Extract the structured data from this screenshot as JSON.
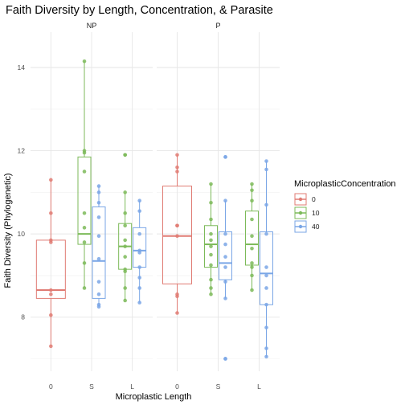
{
  "chart_data": {
    "type": "boxplot",
    "title": "Faith Diversity by Length, Concentration, & Parasite",
    "xlabel": "Microplastic Length",
    "ylabel": "Faith Diversity (Phylogenetic)",
    "ylim": [
      6.7,
      14.85
    ],
    "yticks": [
      8,
      10,
      12,
      14
    ],
    "categories": [
      "0",
      "S",
      "L"
    ],
    "facets": [
      "NP",
      "P"
    ],
    "legend": {
      "title": "MicroplasticConcentration",
      "position": "right",
      "entries": [
        {
          "label": "0",
          "color": "#e07b73"
        },
        {
          "label": "10",
          "color": "#7cba59"
        },
        {
          "label": "40",
          "color": "#7aa6e6"
        }
      ]
    },
    "grid": true,
    "groups": [
      {
        "facet": "NP",
        "category": "0",
        "series": "0",
        "box": {
          "lower_whisker": 7.3,
          "q1": 8.45,
          "median": 8.65,
          "q3": 9.85,
          "upper_whisker": 11.3
        },
        "points": [
          11.3,
          10.5,
          9.85,
          9.8,
          8.65,
          8.55,
          8.05,
          7.3
        ]
      },
      {
        "facet": "NP",
        "category": "S",
        "series": "10",
        "box": {
          "lower_whisker": 8.7,
          "q1": 9.75,
          "median": 10.0,
          "q3": 11.85,
          "upper_whisker": 14.15
        },
        "points": [
          14.15,
          12.0,
          11.95,
          11.5,
          10.5,
          10.15,
          9.8,
          9.3,
          8.7
        ]
      },
      {
        "facet": "NP",
        "category": "S",
        "series": "40",
        "box": {
          "lower_whisker": 8.25,
          "q1": 8.45,
          "median": 9.35,
          "q3": 10.65,
          "upper_whisker": 11.15
        },
        "points": [
          11.15,
          11.0,
          10.75,
          10.4,
          9.95,
          9.4,
          8.85,
          8.55,
          8.3,
          8.25
        ]
      },
      {
        "facet": "NP",
        "category": "L",
        "series": "10",
        "box": {
          "lower_whisker": 8.4,
          "q1": 9.15,
          "median": 9.7,
          "q3": 10.25,
          "upper_whisker": 11.0
        },
        "points": [
          11.9,
          11.9,
          11.0,
          10.5,
          10.2,
          9.85,
          9.7,
          9.45,
          9.15,
          9.1,
          8.7,
          8.4
        ]
      },
      {
        "facet": "NP",
        "category": "L",
        "series": "40",
        "box": {
          "lower_whisker": 8.35,
          "q1": 9.2,
          "median": 9.6,
          "q3": 10.15,
          "upper_whisker": 10.8
        },
        "points": [
          10.8,
          10.55,
          10.0,
          9.6,
          9.55,
          9.2,
          8.95,
          8.7,
          8.35
        ]
      },
      {
        "facet": "P",
        "category": "0",
        "series": "0",
        "box": {
          "lower_whisker": 8.1,
          "q1": 8.8,
          "median": 9.95,
          "q3": 11.15,
          "upper_whisker": 11.9
        },
        "points": [
          11.9,
          11.6,
          11.5,
          10.2,
          10.2,
          9.95,
          8.55,
          8.5,
          8.1
        ]
      },
      {
        "facet": "P",
        "category": "S",
        "series": "10",
        "box": {
          "lower_whisker": 8.55,
          "q1": 9.2,
          "median": 9.75,
          "q3": 10.2,
          "upper_whisker": 11.2
        },
        "points": [
          11.2,
          10.75,
          10.35,
          10.0,
          9.85,
          9.7,
          9.5,
          9.25,
          8.9,
          8.7,
          8.55
        ]
      },
      {
        "facet": "P",
        "category": "S",
        "series": "40",
        "box": {
          "lower_whisker": 8.45,
          "q1": 8.9,
          "median": 9.3,
          "q3": 10.05,
          "upper_whisker": 10.8
        },
        "points": [
          11.85,
          11.85,
          10.8,
          10.0,
          9.75,
          9.45,
          9.2,
          8.85,
          8.45,
          7.0,
          7.0
        ]
      },
      {
        "facet": "P",
        "category": "L",
        "series": "10",
        "box": {
          "lower_whisker": 8.65,
          "q1": 9.25,
          "median": 9.75,
          "q3": 10.55,
          "upper_whisker": 11.2
        },
        "points": [
          11.2,
          11.05,
          10.8,
          10.35,
          9.95,
          9.65,
          9.3,
          9.2,
          9.0,
          8.65
        ]
      },
      {
        "facet": "P",
        "category": "L",
        "series": "40",
        "box": {
          "lower_whisker": 7.05,
          "q1": 8.3,
          "median": 9.05,
          "q3": 10.05,
          "upper_whisker": 11.75
        },
        "points": [
          11.75,
          11.55,
          10.7,
          10.0,
          9.2,
          9.0,
          8.7,
          8.3,
          7.75,
          7.25,
          7.05
        ]
      }
    ]
  }
}
